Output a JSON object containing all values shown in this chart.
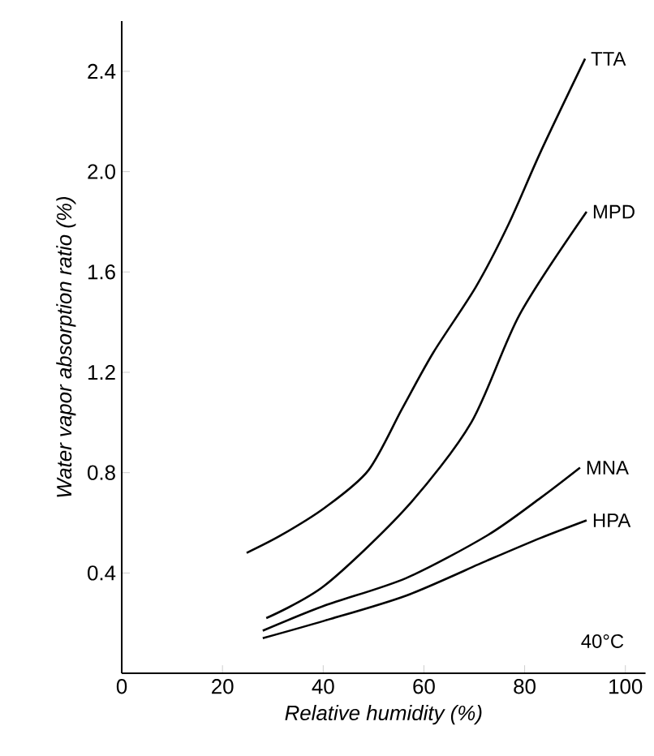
{
  "chart_data": {
    "type": "line",
    "xlabel": "Relative humidity (%)",
    "ylabel": "Water vapor absorption ratio (%)",
    "xlim": [
      0,
      104
    ],
    "ylim": [
      0,
      2.6
    ],
    "xticks": [
      0,
      20,
      40,
      60,
      80,
      100
    ],
    "yticks": [
      0.4,
      0.8,
      1.2,
      1.6,
      {
        "value": 2.0,
        "label": "2.0"
      },
      2.4
    ],
    "series": [
      {
        "name": "TTA",
        "color": "#000000",
        "x": [
          24.8,
          31.6,
          40.3,
          49,
          55.8,
          61.9,
          70.3,
          76.8,
          83.2,
          92
        ],
        "values": [
          0.48,
          0.55,
          0.66,
          0.81,
          1.06,
          1.28,
          1.54,
          1.79,
          2.08,
          2.45
        ]
      },
      {
        "name": "MPD",
        "color": "#000000",
        "x": [
          28.7,
          40.3,
          56.5,
          69.4,
          79,
          92.3
        ],
        "values": [
          0.22,
          0.35,
          0.66,
          1.0,
          1.43,
          1.84
        ]
      },
      {
        "name": "MNA",
        "color": "#000000",
        "x": [
          28,
          40.3,
          56.5,
          72.6,
          83.2,
          91
        ],
        "values": [
          0.17,
          0.27,
          0.38,
          0.55,
          0.7,
          0.82
        ]
      },
      {
        "name": "HPA",
        "color": "#000000",
        "x": [
          28,
          40.3,
          56.5,
          72.6,
          83.2,
          92.3
        ],
        "values": [
          0.14,
          0.21,
          0.31,
          0.45,
          0.54,
          0.61
        ]
      }
    ],
    "annotations": [
      "40°C"
    ],
    "marker": "none",
    "line_style": "solid",
    "grid": false
  }
}
